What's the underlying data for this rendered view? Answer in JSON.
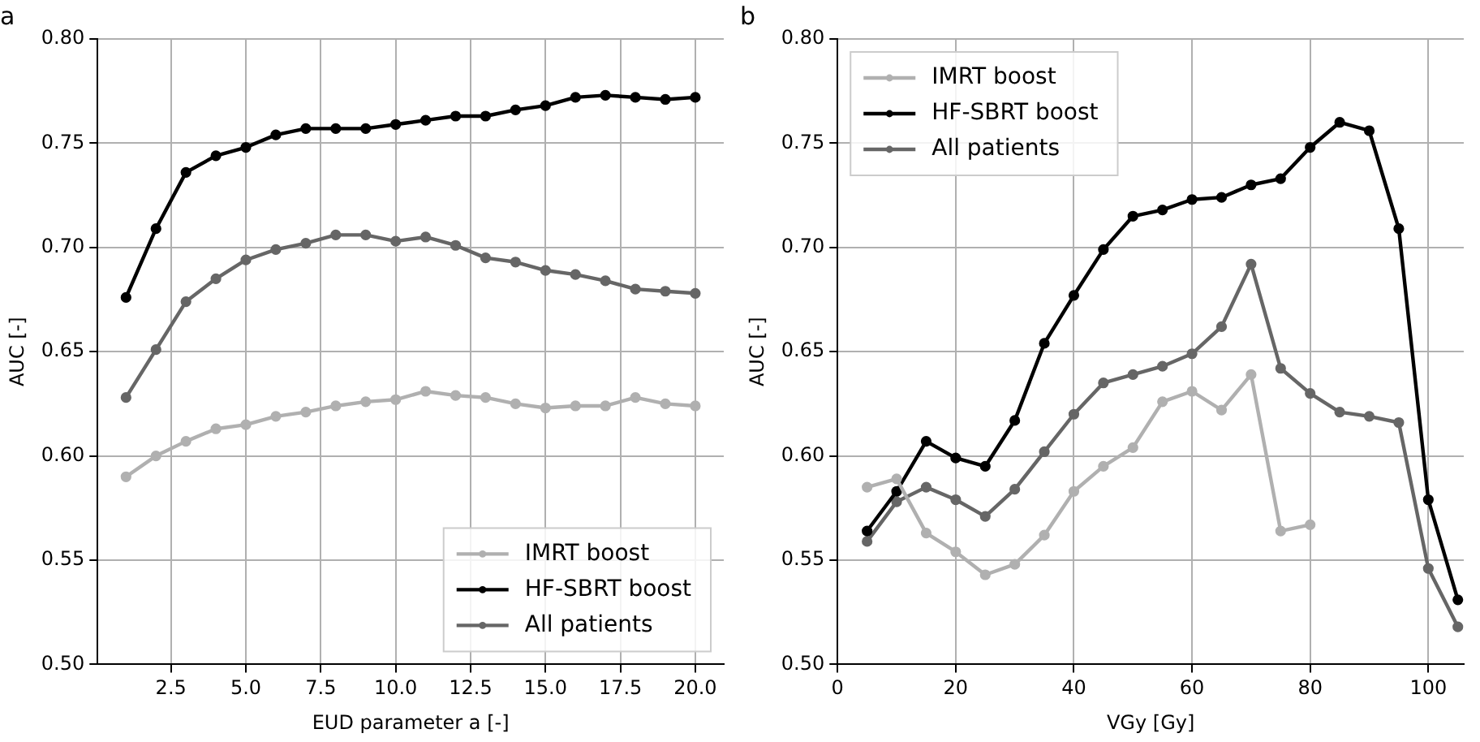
{
  "chart_data": [
    {
      "type": "line",
      "title": "a",
      "xlabel": "EUD parameter a [-]",
      "ylabel": "AUC [-]",
      "x": [
        1,
        2,
        3,
        4,
        5,
        6,
        7,
        8,
        9,
        10,
        11,
        12,
        13,
        14,
        15,
        16,
        17,
        18,
        19,
        20
      ],
      "series": [
        {
          "name": "IMRT boost",
          "color": "#b0b0b0",
          "values": [
            0.59,
            0.6,
            0.607,
            0.613,
            0.615,
            0.619,
            0.621,
            0.624,
            0.626,
            0.627,
            0.631,
            0.629,
            0.628,
            0.625,
            0.623,
            0.624,
            0.624,
            0.628,
            0.625,
            0.624
          ]
        },
        {
          "name": "HF-SBRT boost",
          "color": "#000000",
          "values": [
            0.676,
            0.709,
            0.736,
            0.744,
            0.748,
            0.754,
            0.757,
            0.757,
            0.757,
            0.759,
            0.761,
            0.763,
            0.763,
            0.766,
            0.768,
            0.772,
            0.773,
            0.772,
            0.771,
            0.772
          ]
        },
        {
          "name": "All patients",
          "color": "#666666",
          "values": [
            0.628,
            0.651,
            0.674,
            0.685,
            0.694,
            0.699,
            0.702,
            0.706,
            0.706,
            0.703,
            0.705,
            0.701,
            0.695,
            0.693,
            0.689,
            0.687,
            0.684,
            0.68,
            0.679,
            0.678
          ]
        }
      ],
      "xlim": [
        0.05,
        20.95
      ],
      "xticks": [
        2.5,
        {
          "value": 5,
          "label": "5.0"
        },
        7.5,
        {
          "value": 10,
          "label": "10.0"
        },
        12.5,
        {
          "value": 15,
          "label": "15.0"
        },
        17.5,
        {
          "value": 20,
          "label": "20.0"
        }
      ],
      "ylim": [
        0.5,
        0.8
      ],
      "yticks": [
        {
          "value": 0.5,
          "label": "0.50"
        },
        {
          "value": 0.55,
          "label": "0.55"
        },
        {
          "value": 0.6,
          "label": "0.60"
        },
        {
          "value": 0.65,
          "label": "0.65"
        },
        {
          "value": 0.7,
          "label": "0.70"
        },
        {
          "value": 0.75,
          "label": "0.75"
        },
        {
          "value": 0.8,
          "label": "0.80"
        }
      ],
      "grid": true,
      "legend": "bottom right",
      "marker": "circle",
      "line_style": "solid"
    },
    {
      "type": "line",
      "title": "b",
      "xlabel": "VGy [Gy]",
      "ylabel": "AUC [-]",
      "series": [
        {
          "name": "IMRT boost",
          "color": "#b0b0b0",
          "x": [
            5,
            10,
            15,
            20,
            25,
            30,
            35,
            40,
            45,
            50,
            55,
            60,
            65,
            70,
            75,
            80
          ],
          "values": [
            0.585,
            0.589,
            0.563,
            0.554,
            0.543,
            0.548,
            0.562,
            0.583,
            0.595,
            0.604,
            0.626,
            0.631,
            0.622,
            0.639,
            0.564,
            0.567
          ]
        },
        {
          "name": "HF-SBRT boost",
          "color": "#000000",
          "x": [
            5,
            10,
            15,
            20,
            25,
            30,
            35,
            40,
            45,
            50,
            55,
            60,
            65,
            70,
            75,
            80,
            85,
            90,
            95,
            100,
            105
          ],
          "values": [
            0.564,
            0.583,
            0.607,
            0.599,
            0.595,
            0.617,
            0.654,
            0.677,
            0.699,
            0.715,
            0.718,
            0.723,
            0.724,
            0.73,
            0.733,
            0.748,
            0.76,
            0.756,
            0.709,
            0.579,
            0.531
          ]
        },
        {
          "name": "All patients",
          "color": "#666666",
          "x": [
            5,
            10,
            15,
            20,
            25,
            30,
            35,
            40,
            45,
            50,
            55,
            60,
            65,
            70,
            75,
            80,
            85,
            90,
            95,
            100,
            105
          ],
          "values": [
            0.559,
            0.578,
            0.585,
            0.579,
            0.571,
            0.584,
            0.602,
            0.62,
            0.635,
            0.639,
            0.643,
            0.649,
            0.662,
            0.692,
            0.642,
            0.63,
            0.621,
            0.619,
            0.616,
            0.546,
            0.518
          ]
        }
      ],
      "xlim": [
        0,
        106
      ],
      "xticks": [
        0,
        20,
        40,
        60,
        80,
        100
      ],
      "ylim": [
        0.5,
        0.8
      ],
      "yticks": [
        {
          "value": 0.5,
          "label": "0.50"
        },
        {
          "value": 0.55,
          "label": "0.55"
        },
        {
          "value": 0.6,
          "label": "0.60"
        },
        {
          "value": 0.65,
          "label": "0.65"
        },
        {
          "value": 0.7,
          "label": "0.70"
        },
        {
          "value": 0.75,
          "label": "0.75"
        },
        {
          "value": 0.8,
          "label": "0.80"
        }
      ],
      "grid": true,
      "legend": "top left",
      "marker": "circle",
      "line_style": "solid"
    }
  ]
}
